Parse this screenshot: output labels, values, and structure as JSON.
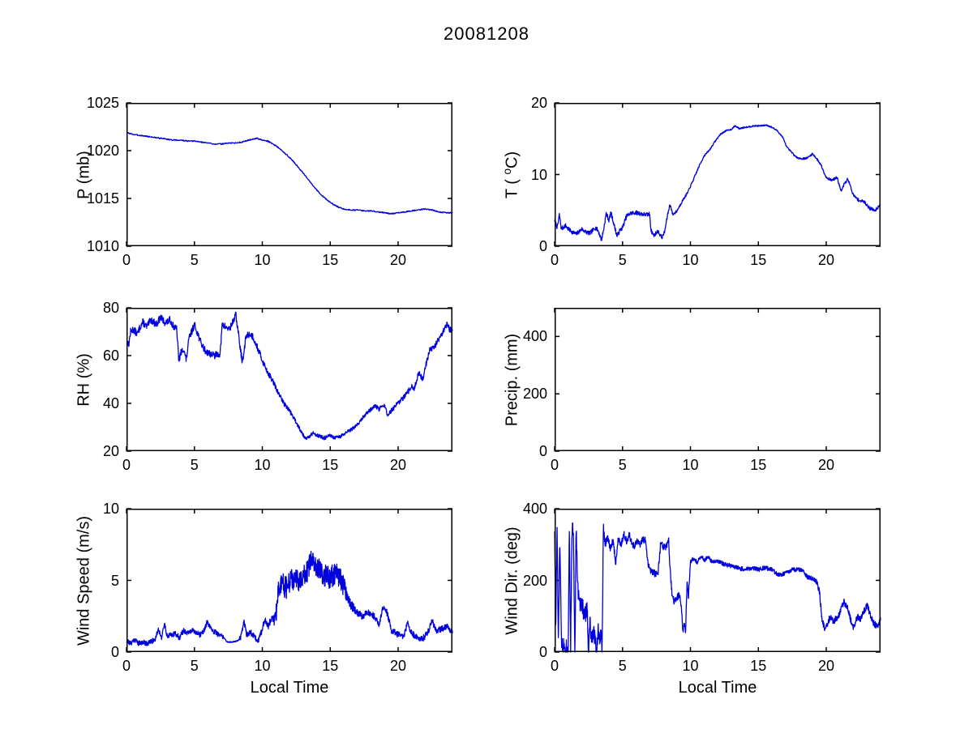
{
  "figure": {
    "title": "20081208",
    "background_color": "#ffffff",
    "axis_color": "#000000",
    "line_color": "#0000dd",
    "x_axis_label": "Local Time"
  },
  "chart_data": [
    {
      "id": "pressure",
      "type": "line",
      "ylabel": "P (mb)",
      "xlabel": "",
      "xlim": [
        0,
        24
      ],
      "ylim": [
        1010,
        1025
      ],
      "xticks": [
        0,
        5,
        10,
        15,
        20
      ],
      "yticks": [
        1010,
        1015,
        1020,
        1025
      ],
      "line_color": "#0000dd",
      "seed": 3,
      "samples": 900,
      "keypoints": {
        "x": [
          0,
          0.5,
          1,
          1.5,
          2,
          2.5,
          3,
          3.5,
          4,
          4.5,
          5,
          5.5,
          6,
          6.5,
          7,
          7.5,
          8,
          8.5,
          9,
          9.3,
          9.6,
          10,
          10.4,
          10.8,
          11.2,
          11.6,
          12,
          12.4,
          12.8,
          13.2,
          13.6,
          14,
          14.4,
          14.8,
          15.2,
          15.6,
          16,
          16.5,
          17,
          17.5,
          18,
          18.5,
          19,
          19.5,
          20,
          20.5,
          21,
          21.5,
          22,
          22.5,
          23,
          23.5,
          24
        ],
        "y": [
          1021.9,
          1021.7,
          1021.6,
          1021.5,
          1021.4,
          1021.3,
          1021.2,
          1021.1,
          1021.1,
          1021.0,
          1021.0,
          1020.9,
          1020.8,
          1020.7,
          1020.7,
          1020.8,
          1020.8,
          1020.9,
          1021.1,
          1021.2,
          1021.3,
          1021.1,
          1021.0,
          1020.7,
          1020.3,
          1019.8,
          1019.3,
          1018.7,
          1018.0,
          1017.3,
          1016.6,
          1015.9,
          1015.3,
          1014.8,
          1014.4,
          1014.1,
          1013.9,
          1013.8,
          1013.8,
          1013.7,
          1013.7,
          1013.6,
          1013.5,
          1013.4,
          1013.5,
          1013.6,
          1013.7,
          1013.8,
          1013.9,
          1013.8,
          1013.6,
          1013.5,
          1013.5
        ]
      },
      "noise": {
        "x": [
          0,
          24
        ],
        "amp": [
          0.06,
          0.06
        ]
      }
    },
    {
      "id": "temperature",
      "type": "line",
      "ylabel": "T ( ^oC)",
      "ylabel_pre": "T ( ",
      "ylabel_sup": "o",
      "ylabel_post": "C)",
      "xlabel": "",
      "xlim": [
        0,
        24
      ],
      "ylim": [
        0,
        20
      ],
      "xticks": [
        0,
        5,
        10,
        15,
        20
      ],
      "yticks": [
        0,
        10,
        20
      ],
      "line_color": "#0000dd",
      "seed": 7,
      "samples": 1100,
      "keypoints": {
        "x": [
          0,
          0.2,
          0.35,
          0.5,
          0.8,
          1,
          1.3,
          1.6,
          2,
          2.3,
          2.6,
          3,
          3.2,
          3.45,
          3.6,
          3.8,
          4,
          4.15,
          4.35,
          4.6,
          4.8,
          5,
          5.3,
          5.6,
          6,
          6.4,
          6.8,
          7,
          7.1,
          7.3,
          7.6,
          7.9,
          8.1,
          8.3,
          8.5,
          8.7,
          9,
          9.4,
          9.8,
          10.2,
          10.6,
          11,
          11.4,
          11.8,
          12.2,
          12.6,
          13,
          13.3,
          13.6,
          14,
          14.4,
          14.8,
          15.2,
          15.6,
          16,
          16.4,
          16.8,
          17.1,
          17.4,
          17.8,
          18.2,
          18.6,
          19,
          19.3,
          19.6,
          20,
          20.4,
          20.8,
          21.1,
          21.3,
          21.6,
          22,
          22.4,
          22.8,
          23.2,
          23.6,
          24
        ],
        "y": [
          3.6,
          2.6,
          4.4,
          2.4,
          2.9,
          2.4,
          2.0,
          1.7,
          2.4,
          2.0,
          1.8,
          2.6,
          2.2,
          0.9,
          2.2,
          4.6,
          3.6,
          4.7,
          3.2,
          1.4,
          2.2,
          2.6,
          4.2,
          4.6,
          4.7,
          4.5,
          4.4,
          4.5,
          2.2,
          1.5,
          2.1,
          1.2,
          2.0,
          4.2,
          5.9,
          4.4,
          4.9,
          6.3,
          7.5,
          9.2,
          11.0,
          12.6,
          13.4,
          14.6,
          15.6,
          16.1,
          16.3,
          16.8,
          16.4,
          16.6,
          16.7,
          16.8,
          16.8,
          16.9,
          16.6,
          16.1,
          15.2,
          13.8,
          13.2,
          12.4,
          12.2,
          12.3,
          12.9,
          12.2,
          11.4,
          9.6,
          9.2,
          9.6,
          7.6,
          8.6,
          9.4,
          7.1,
          6.4,
          6.2,
          5.3,
          5.0,
          5.9
        ]
      },
      "noise": {
        "x": [
          0,
          7,
          8.8,
          12,
          17,
          24
        ],
        "amp": [
          0.3,
          0.3,
          0.18,
          0.1,
          0.1,
          0.25
        ]
      }
    },
    {
      "id": "relative-humidity",
      "type": "line",
      "ylabel": "RH (%)",
      "xlabel": "",
      "xlim": [
        0,
        24
      ],
      "ylim": [
        20,
        80
      ],
      "xticks": [
        0,
        5,
        10,
        15,
        20
      ],
      "yticks": [
        20,
        40,
        60,
        80
      ],
      "line_color": "#0000dd",
      "seed": 13,
      "samples": 1100,
      "keypoints": {
        "x": [
          0,
          0.15,
          0.3,
          0.5,
          0.8,
          1,
          1.2,
          1.5,
          1.8,
          2,
          2.2,
          2.5,
          2.8,
          3,
          3.2,
          3.5,
          3.7,
          3.85,
          4,
          4.2,
          4.4,
          4.6,
          4.8,
          5,
          5.2,
          5.5,
          5.8,
          6.1,
          6.5,
          6.9,
          7.05,
          7.3,
          7.6,
          7.9,
          8.05,
          8.2,
          8.4,
          8.55,
          8.8,
          9,
          9.3,
          9.6,
          10,
          10.4,
          10.8,
          11.2,
          11.6,
          12,
          12.4,
          12.8,
          13.1,
          13.4,
          13.7,
          14,
          14.3,
          14.6,
          15,
          15.3,
          15.7,
          16,
          16.4,
          16.8,
          17.2,
          17.6,
          18,
          18.3,
          18.6,
          19,
          19.2,
          19.5,
          20,
          20.5,
          21,
          21.2,
          21.5,
          21.8,
          22,
          22.3,
          22.7,
          23,
          23.3,
          23.6,
          23.8,
          24
        ],
        "y": [
          68,
          64,
          70,
          71,
          69,
          72,
          74,
          72,
          75,
          74,
          73,
          76,
          74,
          74,
          75,
          72,
          71,
          58,
          61,
          63,
          58,
          67,
          70,
          73,
          70,
          65,
          62,
          61,
          60,
          61,
          73,
          72,
          71,
          75,
          77,
          71,
          62,
          57,
          68,
          69,
          68,
          64,
          58,
          53,
          49,
          44,
          40,
          37,
          33,
          29,
          26,
          25.5,
          27.5,
          27,
          26,
          25.5,
          26.5,
          25.5,
          26,
          27,
          28.5,
          30,
          32.5,
          35.5,
          37.5,
          39,
          37.5,
          39.5,
          35,
          37,
          40,
          43,
          47,
          46,
          53,
          50,
          55,
          62,
          64,
          67,
          70,
          73,
          71,
          71
        ]
      },
      "noise": {
        "x": [
          0,
          9,
          12,
          17,
          21,
          24
        ],
        "amp": [
          1.5,
          1.5,
          0.9,
          0.7,
          1.2,
          1.2
        ]
      }
    },
    {
      "id": "precipitation",
      "type": "line",
      "ylabel": "Precip. (mm)",
      "xlabel": "",
      "xlim": [
        0,
        24
      ],
      "ylim": [
        0,
        500
      ],
      "xticks": [
        0,
        5,
        10,
        15,
        20
      ],
      "yticks": [
        0,
        200,
        400
      ],
      "line_color": "#0000dd",
      "seed": 1,
      "samples": 0,
      "keypoints": {
        "x": [],
        "y": []
      },
      "noise": {
        "x": [
          0,
          24
        ],
        "amp": [
          0,
          0
        ]
      }
    },
    {
      "id": "wind-speed",
      "type": "line",
      "ylabel": "Wind Speed (m/s)",
      "xlabel": "Local Time",
      "xlim": [
        0,
        24
      ],
      "ylim": [
        0,
        10
      ],
      "xticks": [
        0,
        5,
        10,
        15,
        20
      ],
      "yticks": [
        0,
        5,
        10
      ],
      "line_color": "#0000dd",
      "seed": 21,
      "samples": 1300,
      "clamp": [
        0.08,
        10
      ],
      "keypoints": {
        "x": [
          0,
          0.3,
          0.6,
          0.9,
          1.2,
          1.5,
          1.8,
          2.1,
          2.35,
          2.6,
          2.8,
          3,
          3.3,
          3.6,
          3.9,
          4.2,
          4.5,
          4.8,
          5.1,
          5.4,
          5.7,
          5.95,
          6.2,
          6.5,
          6.8,
          7.1,
          7.4,
          7.8,
          8.2,
          8.45,
          8.65,
          8.85,
          9.1,
          9.4,
          9.7,
          10,
          10.2,
          10.45,
          10.7,
          10.9,
          11.05,
          11.2,
          11.5,
          11.8,
          12.1,
          12.4,
          12.7,
          13,
          13.3,
          13.6,
          13.9,
          14.2,
          14.5,
          14.8,
          15.1,
          15.4,
          15.7,
          16,
          16.3,
          16.6,
          17,
          17.4,
          17.8,
          18.2,
          18.6,
          18.9,
          19.2,
          19.5,
          20,
          20.4,
          20.7,
          21,
          21.4,
          21.8,
          22.2,
          22.5,
          22.8,
          23.2,
          23.6,
          24
        ],
        "y": [
          0.8,
          0.6,
          0.9,
          0.6,
          0.7,
          0.6,
          0.7,
          0.9,
          1.6,
          1.0,
          2.0,
          1.1,
          1.2,
          1.3,
          1.0,
          1.5,
          1.3,
          1.5,
          1.4,
          1.2,
          1.5,
          2.1,
          1.6,
          1.4,
          1.2,
          1.1,
          0.7,
          0.7,
          0.8,
          1.1,
          2.2,
          1.2,
          1.4,
          1.1,
          0.8,
          1.6,
          2.3,
          1.8,
          2.5,
          2.1,
          2.8,
          4.6,
          4.8,
          4.4,
          5.0,
          5.1,
          4.8,
          5.3,
          5.6,
          6.3,
          5.9,
          6.0,
          5.4,
          5.2,
          5.3,
          5.5,
          5.1,
          4.7,
          3.8,
          3.2,
          2.7,
          2.5,
          2.8,
          2.5,
          2.0,
          3.2,
          2.7,
          1.5,
          1.2,
          1.1,
          2.0,
          1.3,
          1.0,
          0.9,
          1.4,
          2.2,
          1.5,
          1.6,
          1.8,
          1.4
        ]
      },
      "noise": {
        "x": [
          0,
          7.1,
          7.3,
          8.2,
          8.4,
          10.8,
          11.05,
          16,
          16.8,
          24
        ],
        "amp": [
          0.18,
          0.18,
          0.04,
          0.04,
          0.2,
          0.25,
          0.8,
          0.8,
          0.25,
          0.2
        ]
      }
    },
    {
      "id": "wind-direction",
      "type": "line",
      "ylabel": "Wind Dir. (deg)",
      "xlabel": "Local Time",
      "xlim": [
        0,
        24
      ],
      "ylim": [
        0,
        400
      ],
      "xticks": [
        0,
        5,
        10,
        15,
        20
      ],
      "yticks": [
        0,
        200,
        400
      ],
      "line_color": "#0000dd",
      "seed": 33,
      "samples": 1300,
      "clamp": [
        0,
        360
      ],
      "keypoints": {
        "x": [
          0,
          0.08,
          0.18,
          0.28,
          0.38,
          0.5,
          0.62,
          0.8,
          1.0,
          1.08,
          1.18,
          1.28,
          1.38,
          1.5,
          1.58,
          1.7,
          1.85,
          2.0,
          2.2,
          2.4,
          2.5,
          2.6,
          2.7,
          2.85,
          3.0,
          3.1,
          3.2,
          3.3,
          3.4,
          3.5,
          3.58,
          3.7,
          3.9,
          4.1,
          4.3,
          4.5,
          4.7,
          4.9,
          5.1,
          5.3,
          5.5,
          5.7,
          5.9,
          6.1,
          6.3,
          6.5,
          6.7,
          6.9,
          7.1,
          7.35,
          7.6,
          7.8,
          8.0,
          8.2,
          8.4,
          8.5,
          8.65,
          8.8,
          9.0,
          9.2,
          9.35,
          9.45,
          9.55,
          9.65,
          9.75,
          9.85,
          10.0,
          10.2,
          10.5,
          10.8,
          11.0,
          11.3,
          11.6,
          12.0,
          12.5,
          13.0,
          13.5,
          14.0,
          14.5,
          15.0,
          15.5,
          16.0,
          16.3,
          16.6,
          17.0,
          17.5,
          18.0,
          18.3,
          18.6,
          19.0,
          19.3,
          19.5,
          19.7,
          19.9,
          20.1,
          20.3,
          20.5,
          20.8,
          21.0,
          21.3,
          21.5,
          21.8,
          22.0,
          22.3,
          22.5,
          22.8,
          23.0,
          23.3,
          23.5,
          23.8,
          24
        ],
        "y": [
          350,
          60,
          350,
          10,
          330,
          30,
          20,
          15,
          10,
          355,
          5,
          350,
          340,
          0,
          355,
          180,
          130,
          140,
          100,
          120,
          0,
          90,
          30,
          60,
          40,
          0,
          70,
          30,
          60,
          0,
          340,
          300,
          320,
          290,
          310,
          250,
          320,
          300,
          330,
          310,
          325,
          300,
          295,
          310,
          300,
          315,
          310,
          240,
          225,
          220,
          215,
          300,
          295,
          290,
          310,
          230,
          160,
          140,
          150,
          160,
          120,
          60,
          80,
          55,
          200,
          150,
          250,
          260,
          250,
          270,
          255,
          265,
          250,
          255,
          245,
          240,
          235,
          230,
          235,
          230,
          235,
          230,
          220,
          215,
          220,
          230,
          230,
          225,
          210,
          205,
          195,
          170,
          90,
          65,
          80,
          100,
          85,
          95,
          110,
          140,
          130,
          90,
          70,
          100,
          90,
          115,
          130,
          100,
          80,
          70,
          95
        ]
      },
      "noise": {
        "x": [
          0,
          3.6,
          3.8,
          9,
          10,
          19,
          19.6,
          24
        ],
        "amp": [
          25,
          25,
          10,
          10,
          6,
          6,
          9,
          9
        ]
      }
    }
  ]
}
